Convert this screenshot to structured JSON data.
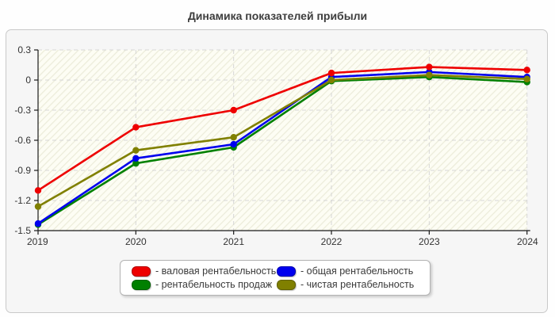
{
  "page": {
    "title": "Динамика показателей прибыли"
  },
  "chart_data": {
    "type": "line",
    "title": "Динамика показателей прибыли",
    "x_categories": [
      "2019",
      "2020",
      "2021",
      "2022",
      "2023",
      "2024"
    ],
    "series": [
      {
        "name": "валовая рентабельность",
        "color": "#ee0000",
        "values": [
          -1.1,
          -0.47,
          -0.3,
          0.07,
          0.13,
          0.1
        ]
      },
      {
        "name": "общая рентабельность",
        "color": "#0000ee",
        "values": [
          -1.43,
          -0.78,
          -0.64,
          0.03,
          0.08,
          0.03
        ]
      },
      {
        "name": "рентабельность продаж",
        "color": "#008000",
        "values": [
          -1.44,
          -0.83,
          -0.67,
          -0.01,
          0.03,
          -0.02
        ]
      },
      {
        "name": "чистая рентабельность",
        "color": "#808000",
        "values": [
          -1.26,
          -0.7,
          -0.57,
          0.0,
          0.05,
          0.01
        ]
      }
    ],
    "draw_order": [
      2,
      1,
      3,
      0
    ],
    "ylim": [
      -1.5,
      0.3
    ],
    "yticks": [
      {
        "label": "0.3",
        "value": 0.3
      },
      {
        "label": "0",
        "value": 0.0
      },
      {
        "label": "-0.3",
        "value": -0.3
      },
      {
        "label": "-0.6",
        "value": -0.6
      },
      {
        "label": "-0.9",
        "value": -0.9
      },
      {
        "label": "-1.2",
        "value": -1.2
      },
      {
        "label": "-1.5",
        "value": -1.5
      }
    ],
    "grid": "dashed",
    "legend_position": "bottom"
  },
  "legend": {
    "items": [
      {
        "label": "- валовая рентабельность",
        "color": "#ee0000"
      },
      {
        "label": "- общая рентабельность",
        "color": "#0000ee"
      },
      {
        "label": "- рентабельность продаж",
        "color": "#008000"
      },
      {
        "label": "- чистая рентабельность",
        "color": "#808000"
      }
    ]
  },
  "colors": {
    "panel_bg": "#f6f6f6",
    "panel_border": "#c9c9c9",
    "plot_bg": "#fdfdf4",
    "hatch_line": "#ececda",
    "gridline": "#d6d6d6",
    "axis": "#1a1a1a",
    "tick_text": "#333333"
  }
}
